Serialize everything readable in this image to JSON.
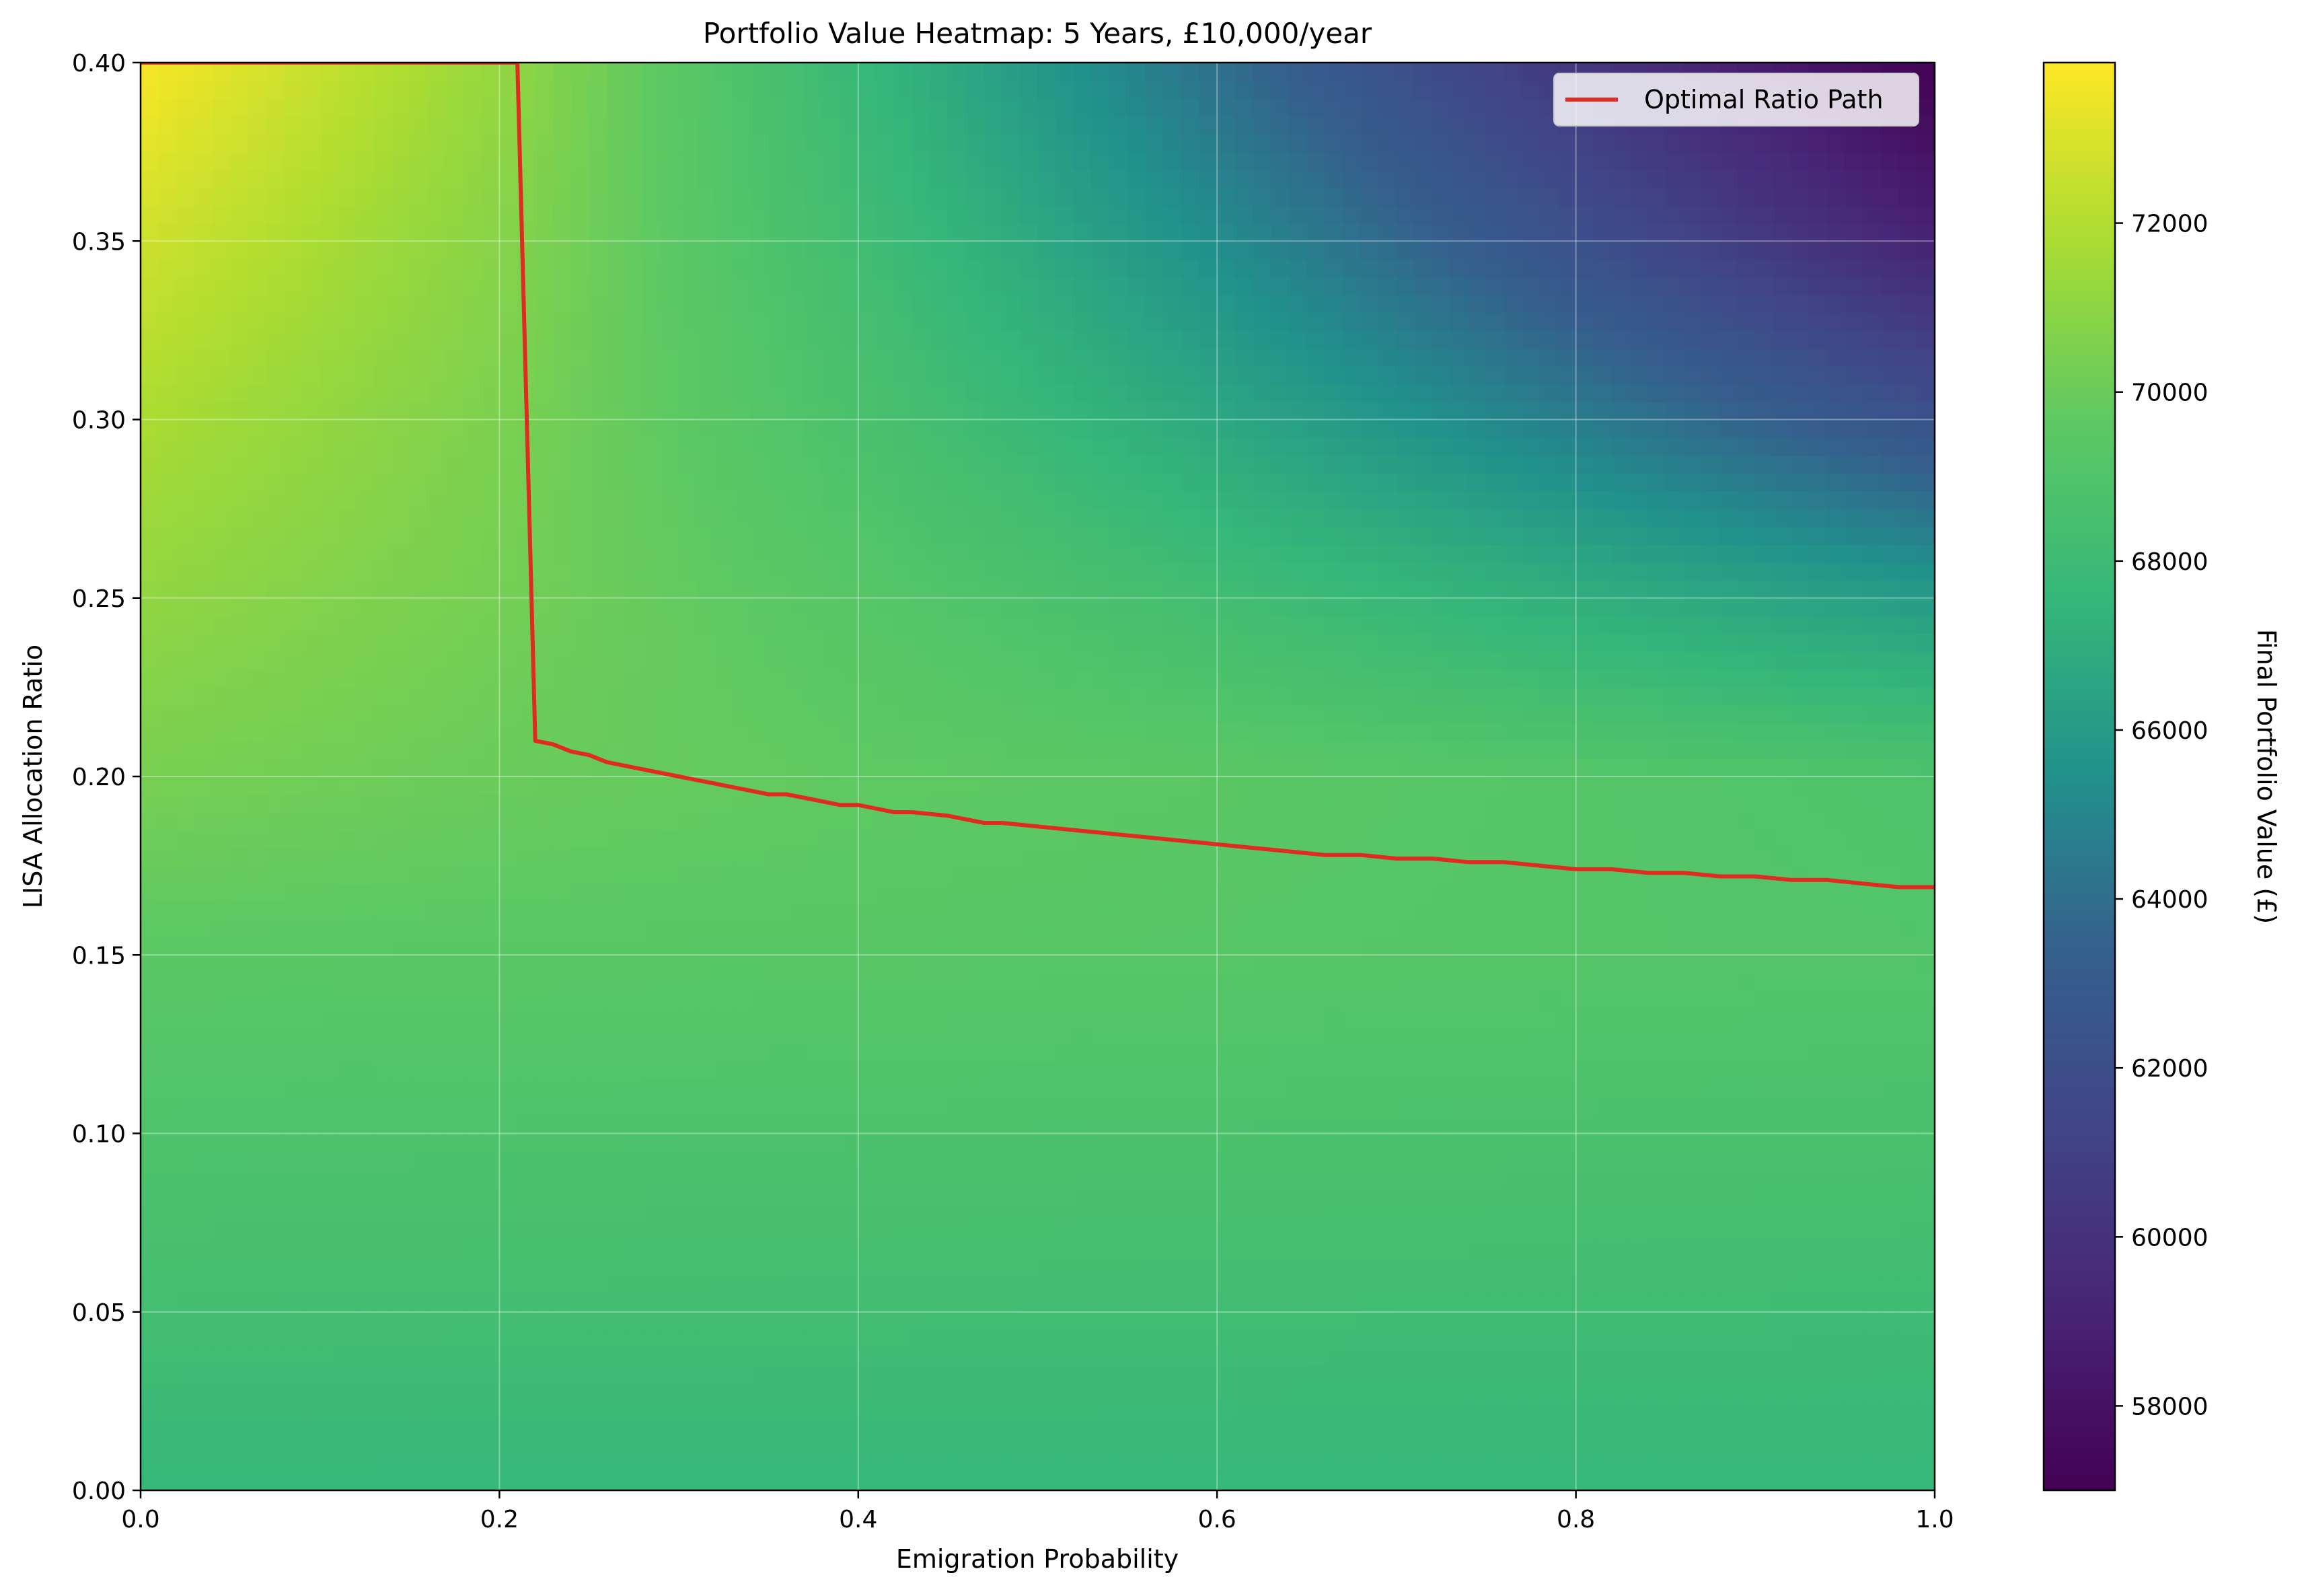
{
  "chart_data": {
    "type": "heatmap",
    "title": "Portfolio Value Heatmap: 5 Years, £10,000/year",
    "xlabel": "Emigration Probability",
    "ylabel": "LISA Allocation Ratio",
    "xlim": [
      0.0,
      1.0
    ],
    "ylim": [
      0.0,
      0.4
    ],
    "x_ticks": [
      0.0,
      0.2,
      0.4,
      0.6,
      0.8,
      1.0
    ],
    "x_tick_labels": [
      "0.0",
      "0.2",
      "0.4",
      "0.6",
      "0.8",
      "1.0"
    ],
    "y_ticks": [
      0.0,
      0.05,
      0.1,
      0.15,
      0.2,
      0.25,
      0.3,
      0.35,
      0.4
    ],
    "y_tick_labels": [
      "0.00",
      "0.05",
      "0.10",
      "0.15",
      "0.20",
      "0.25",
      "0.30",
      "0.35",
      "0.40"
    ],
    "grid": true,
    "colormap": "viridis",
    "colorbar": {
      "label": "Final Portfolio Value (£)",
      "range": [
        57000,
        73900
      ],
      "ticks": [
        58000,
        60000,
        62000,
        64000,
        66000,
        68000,
        70000,
        72000
      ],
      "tick_labels": [
        "58000",
        "60000",
        "62000",
        "64000",
        "66000",
        "68000",
        "70000",
        "72000"
      ]
    },
    "heatmap_grid": {
      "x": [
        0.0,
        0.2,
        0.4,
        0.6,
        0.8,
        1.0
      ],
      "y": [
        0.0,
        0.05,
        0.1,
        0.15,
        0.2,
        0.25,
        0.3,
        0.35,
        0.4
      ],
      "z": [
        [
          67600,
          67600,
          67600,
          67600,
          67600,
          67600
        ],
        [
          68300,
          68250,
          68200,
          68150,
          68100,
          68050
        ],
        [
          68900,
          68850,
          68800,
          68750,
          68700,
          68650
        ],
        [
          69500,
          69450,
          69400,
          69300,
          69200,
          69100
        ],
        [
          70400,
          70000,
          69700,
          69500,
          69200,
          68900
        ],
        [
          71100,
          70300,
          69300,
          68200,
          67100,
          66000
        ],
        [
          71800,
          70500,
          68700,
          66700,
          64600,
          62300
        ],
        [
          72700,
          70800,
          68200,
          65300,
          62200,
          59000
        ],
        [
          73800,
          71200,
          67700,
          64000,
          60300,
          57000
        ]
      ]
    },
    "legend": {
      "position": "top-right",
      "entries": [
        "Optimal Ratio Path"
      ]
    },
    "series": [
      {
        "name": "Optimal Ratio Path",
        "color": "#e02b20",
        "x": [
          0.0,
          0.21,
          0.22,
          0.23,
          0.24,
          0.25,
          0.26,
          0.28,
          0.3,
          0.32,
          0.34,
          0.35,
          0.36,
          0.38,
          0.39,
          0.4,
          0.42,
          0.43,
          0.45,
          0.47,
          0.48,
          0.5,
          0.52,
          0.54,
          0.56,
          0.58,
          0.6,
          0.62,
          0.64,
          0.66,
          0.68,
          0.7,
          0.72,
          0.74,
          0.76,
          0.78,
          0.8,
          0.82,
          0.84,
          0.86,
          0.88,
          0.9,
          0.92,
          0.94,
          0.96,
          0.98,
          1.0
        ],
        "y": [
          0.4,
          0.4,
          0.21,
          0.209,
          0.207,
          0.206,
          0.204,
          0.202,
          0.2,
          0.198,
          0.196,
          0.195,
          0.195,
          0.193,
          0.192,
          0.192,
          0.19,
          0.19,
          0.189,
          0.187,
          0.187,
          0.186,
          0.185,
          0.184,
          0.183,
          0.182,
          0.181,
          0.18,
          0.179,
          0.178,
          0.178,
          0.177,
          0.177,
          0.176,
          0.176,
          0.175,
          0.174,
          0.174,
          0.173,
          0.173,
          0.172,
          0.172,
          0.171,
          0.171,
          0.17,
          0.169,
          0.169
        ]
      }
    ]
  }
}
